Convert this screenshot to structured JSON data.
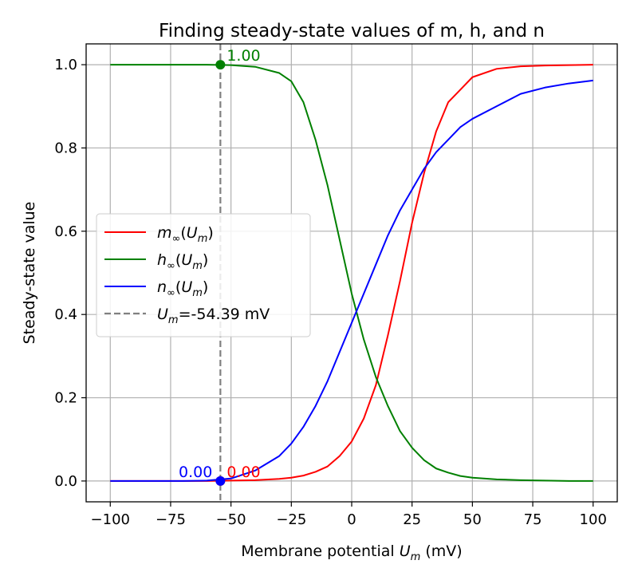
{
  "chart_data": {
    "type": "line",
    "title": "Finding steady-state values of m, h, and n",
    "xlabel": "Membrane potential",
    "xlabel_symbol": "U",
    "xlabel_sub": "m",
    "xlabel_unit": "(mV)",
    "ylabel": "Steady-state value",
    "xlim": [
      -110,
      110
    ],
    "ylim": [
      -0.05,
      1.05
    ],
    "xticks": [
      -100,
      -75,
      -50,
      -25,
      0,
      25,
      50,
      75,
      100
    ],
    "xtick_labels": [
      "−100",
      "−75",
      "−50",
      "−25",
      "0",
      "25",
      "50",
      "75",
      "100"
    ],
    "yticks": [
      0.0,
      0.2,
      0.4,
      0.6,
      0.8,
      1.0
    ],
    "ytick_labels": [
      "0.0",
      "0.2",
      "0.4",
      "0.6",
      "0.8",
      "1.0"
    ],
    "grid": true,
    "legend_position": "center-left",
    "x": [
      -100,
      -90,
      -80,
      -70,
      -60,
      -50,
      -40,
      -30,
      -25,
      -20,
      -15,
      -10,
      -5,
      0,
      5,
      10,
      15,
      20,
      25,
      30,
      35,
      40,
      45,
      50,
      60,
      70,
      80,
      90,
      100
    ],
    "series": [
      {
        "name": "m",
        "label_symbol": "m",
        "label_inf": "∞",
        "label_arg": "U",
        "label_arg_sub": "m",
        "color": "#ff0000",
        "values": [
          0.0,
          0.0,
          0.0,
          0.0,
          0.0,
          0.001,
          0.002,
          0.005,
          0.008,
          0.013,
          0.022,
          0.035,
          0.06,
          0.095,
          0.15,
          0.23,
          0.35,
          0.48,
          0.62,
          0.74,
          0.84,
          0.91,
          0.94,
          0.97,
          0.99,
          0.996,
          0.998,
          0.999,
          1.0
        ]
      },
      {
        "name": "h",
        "label_symbol": "h",
        "label_inf": "∞",
        "label_arg": "U",
        "label_arg_sub": "m",
        "color": "#008000",
        "values": [
          1.0,
          1.0,
          1.0,
          1.0,
          1.0,
          0.999,
          0.995,
          0.98,
          0.96,
          0.91,
          0.82,
          0.71,
          0.58,
          0.45,
          0.34,
          0.25,
          0.18,
          0.12,
          0.08,
          0.05,
          0.03,
          0.02,
          0.012,
          0.008,
          0.004,
          0.002,
          0.001,
          0.0,
          0.0
        ]
      },
      {
        "name": "n",
        "label_symbol": "n",
        "label_inf": "∞",
        "label_arg": "U",
        "label_arg_sub": "m",
        "color": "#0000ff",
        "values": [
          0.0,
          0.0,
          0.0,
          0.0,
          0.001,
          0.006,
          0.025,
          0.06,
          0.09,
          0.13,
          0.18,
          0.24,
          0.31,
          0.38,
          0.45,
          0.52,
          0.59,
          0.65,
          0.7,
          0.75,
          0.79,
          0.82,
          0.85,
          0.87,
          0.9,
          0.93,
          0.945,
          0.955,
          0.962
        ]
      }
    ],
    "vline": {
      "x": -54.39,
      "color": "#808080",
      "style": "dashed",
      "label_symbol": "U",
      "label_sub": "m",
      "label_text": "=-54.39 mV"
    },
    "points": [
      {
        "series": "h",
        "x": -54.39,
        "y": 1.0,
        "label": "1.00",
        "color": "#008000",
        "label_side": "right"
      },
      {
        "series": "m",
        "x": -54.39,
        "y": 0.0,
        "label": "0.00",
        "color": "#ff0000",
        "label_side": "right"
      },
      {
        "series": "n",
        "x": -54.39,
        "y": 0.0,
        "label": "0.00",
        "color": "#0000ff",
        "label_side": "left"
      }
    ]
  }
}
